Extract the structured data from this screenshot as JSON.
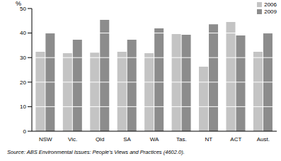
{
  "chart_data": {
    "type": "bar",
    "y_label": "%",
    "categories": [
      "NSW",
      "Vic.",
      "Qld",
      "SA",
      "WA",
      "Tas.",
      "NT",
      "ACT",
      "Aust."
    ],
    "series": [
      {
        "name": "2006",
        "color": "#c4c4c4",
        "values": [
          32.4,
          31.8,
          32,
          32.4,
          31.8,
          39.6,
          26.3,
          44.5,
          32.4
        ]
      },
      {
        "name": "2009",
        "color": "#8c8c8c",
        "values": [
          39.9,
          37.3,
          45.4,
          37.3,
          41.9,
          39.3,
          43.6,
          39,
          39.9
        ]
      }
    ],
    "ylim": [
      0,
      50
    ],
    "yticks": [
      0,
      10,
      20,
      30,
      40,
      50
    ],
    "grid": true,
    "legend": "top-right",
    "annotations": [
      "Source: ABS Environmental Issues: People's Views and Practices (4602.0)."
    ]
  }
}
